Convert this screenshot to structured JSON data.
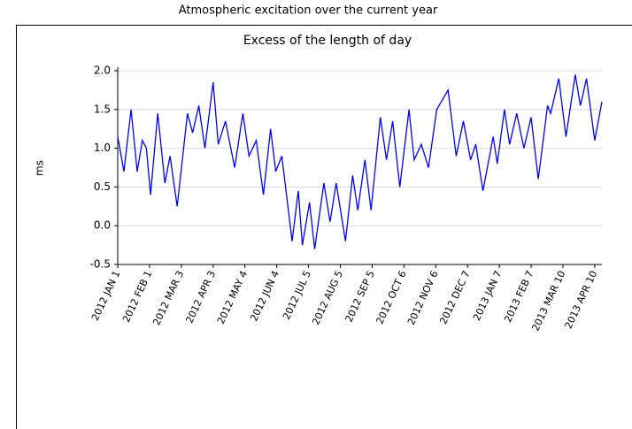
{
  "chart_data": {
    "type": "line",
    "title": "Atmospheric excitation over the current year",
    "subtitle": "Excess of the length of day",
    "ylabel": "ms",
    "x": [
      "2012-01-01",
      "2012-01-07",
      "2012-01-14",
      "2012-01-20",
      "2012-01-25",
      "2012-01-29",
      "2012-02-02",
      "2012-02-09",
      "2012-02-16",
      "2012-02-21",
      "2012-02-28",
      "2012-03-09",
      "2012-03-14",
      "2012-03-20",
      "2012-03-26",
      "2012-04-03",
      "2012-04-08",
      "2012-04-15",
      "2012-04-24",
      "2012-05-02",
      "2012-05-08",
      "2012-05-15",
      "2012-05-22",
      "2012-05-29",
      "2012-06-03",
      "2012-06-09",
      "2012-06-19",
      "2012-06-25",
      "2012-06-29",
      "2012-07-06",
      "2012-07-11",
      "2012-07-20",
      "2012-07-26",
      "2012-08-01",
      "2012-08-10",
      "2012-08-17",
      "2012-08-22",
      "2012-08-29",
      "2012-09-04",
      "2012-09-13",
      "2012-09-19",
      "2012-09-25",
      "2012-10-02",
      "2012-10-11",
      "2012-10-16",
      "2012-10-23",
      "2012-10-30",
      "2012-11-07",
      "2012-11-18",
      "2012-11-26",
      "2012-12-03",
      "2012-12-10",
      "2012-12-15",
      "2012-12-22",
      "2013-01-01",
      "2013-01-05",
      "2013-01-12",
      "2013-01-17",
      "2013-01-24",
      "2013-01-31",
      "2013-02-07",
      "2013-02-14",
      "2013-02-23",
      "2013-02-26",
      "2013-03-06",
      "2013-03-13",
      "2013-03-22",
      "2013-03-27",
      "2013-04-02",
      "2013-04-10",
      "2013-04-17"
    ],
    "series": [
      {
        "name": "Excess of the length of day",
        "color": "#0000ff",
        "values": [
          1.15,
          0.7,
          1.5,
          0.7,
          1.1,
          1.0,
          0.4,
          1.45,
          0.55,
          0.9,
          0.25,
          1.45,
          1.2,
          1.55,
          1.0,
          1.85,
          1.05,
          1.35,
          0.75,
          1.45,
          0.9,
          1.1,
          0.4,
          1.25,
          0.7,
          0.9,
          -0.2,
          0.45,
          -0.25,
          0.3,
          -0.3,
          0.55,
          0.05,
          0.55,
          -0.2,
          0.65,
          0.2,
          0.85,
          0.2,
          1.4,
          0.85,
          1.35,
          0.5,
          1.5,
          0.85,
          1.05,
          0.75,
          1.5,
          1.75,
          0.9,
          1.35,
          0.85,
          1.05,
          0.45,
          1.15,
          0.8,
          1.5,
          1.05,
          1.45,
          1.0,
          1.4,
          0.6,
          1.55,
          1.45,
          1.9,
          1.15,
          1.95,
          1.55,
          1.9,
          1.1,
          1.6
        ]
      }
    ],
    "xlim": [
      "2012-01-01",
      "2013-04-17"
    ],
    "xticks": [
      {
        "value": "2012-01-01",
        "label": "2012 JAN 1"
      },
      {
        "value": "2012-02-01",
        "label": "2012 FEB 1"
      },
      {
        "value": "2012-03-03",
        "label": "2012 MAR 3"
      },
      {
        "value": "2012-04-03",
        "label": "2012 APR 3"
      },
      {
        "value": "2012-05-04",
        "label": "2012 MAY 4"
      },
      {
        "value": "2012-06-04",
        "label": "2012 JUN 4"
      },
      {
        "value": "2012-07-05",
        "label": "2012 JUL 5"
      },
      {
        "value": "2012-08-05",
        "label": "2012 AUG 5"
      },
      {
        "value": "2012-09-05",
        "label": "2012 SEP 5"
      },
      {
        "value": "2012-10-06",
        "label": "2012 OCT 6"
      },
      {
        "value": "2012-11-06",
        "label": "2012 NOV 6"
      },
      {
        "value": "2012-12-07",
        "label": "2012 DEC 7"
      },
      {
        "value": "2013-01-07",
        "label": "2013 JAN 7"
      },
      {
        "value": "2013-02-07",
        "label": "2013 FEB 7"
      },
      {
        "value": "2013-03-10",
        "label": "2013 MAR 10"
      },
      {
        "value": "2013-04-10",
        "label": "2013 APR 10"
      }
    ],
    "ylim": [
      -0.5,
      2.0
    ],
    "yticks": [
      -0.5,
      {
        "value": 0,
        "label": "0.0"
      },
      0.5,
      {
        "value": 1,
        "label": "1.0"
      },
      1.5,
      {
        "value": 2,
        "label": "2.0"
      }
    ],
    "grid": true
  }
}
